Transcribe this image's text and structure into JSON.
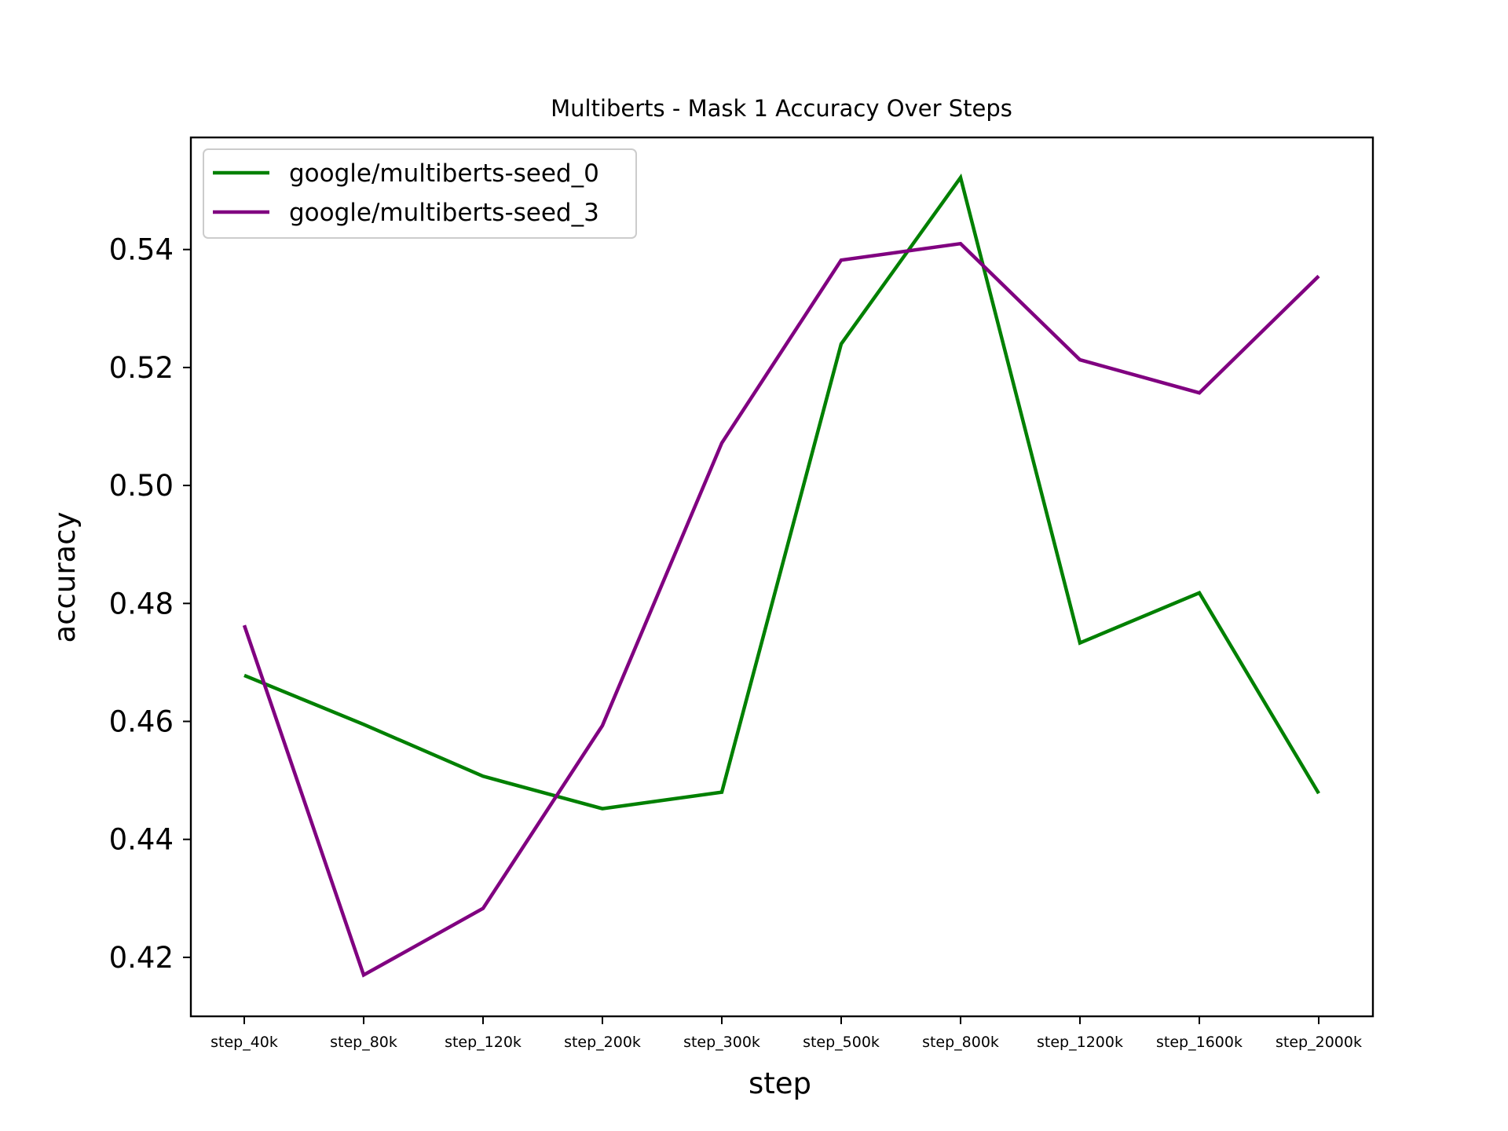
{
  "chart_data": {
    "type": "line",
    "title": "Multiberts - Mask 1 Accuracy Over Steps",
    "xlabel": "step",
    "ylabel": "accuracy",
    "categories": [
      "step_40k",
      "step_80k",
      "step_120k",
      "step_200k",
      "step_300k",
      "step_500k",
      "step_800k",
      "step_1200k",
      "step_1600k",
      "step_2000k"
    ],
    "ylim": [
      0.41,
      0.559
    ],
    "yticks": [
      0.42,
      0.44,
      0.46,
      0.48,
      0.5,
      0.52,
      0.54
    ],
    "ytick_labels": [
      "0.42",
      "0.44",
      "0.46",
      "0.48",
      "0.50",
      "0.52",
      "0.54"
    ],
    "grid": false,
    "legend_position": "top-left",
    "series": [
      {
        "name": "google/multiberts-seed_0",
        "color": "#008000",
        "values": [
          0.4678,
          0.4595,
          0.4507,
          0.4452,
          0.448,
          0.524,
          0.5522,
          0.4733,
          0.4818,
          0.4478
        ]
      },
      {
        "name": "google/multiberts-seed_3",
        "color": "#800080",
        "values": [
          0.4763,
          0.417,
          0.4283,
          0.4593,
          0.5072,
          0.5382,
          0.541,
          0.5213,
          0.5157,
          0.5355
        ]
      }
    ]
  }
}
